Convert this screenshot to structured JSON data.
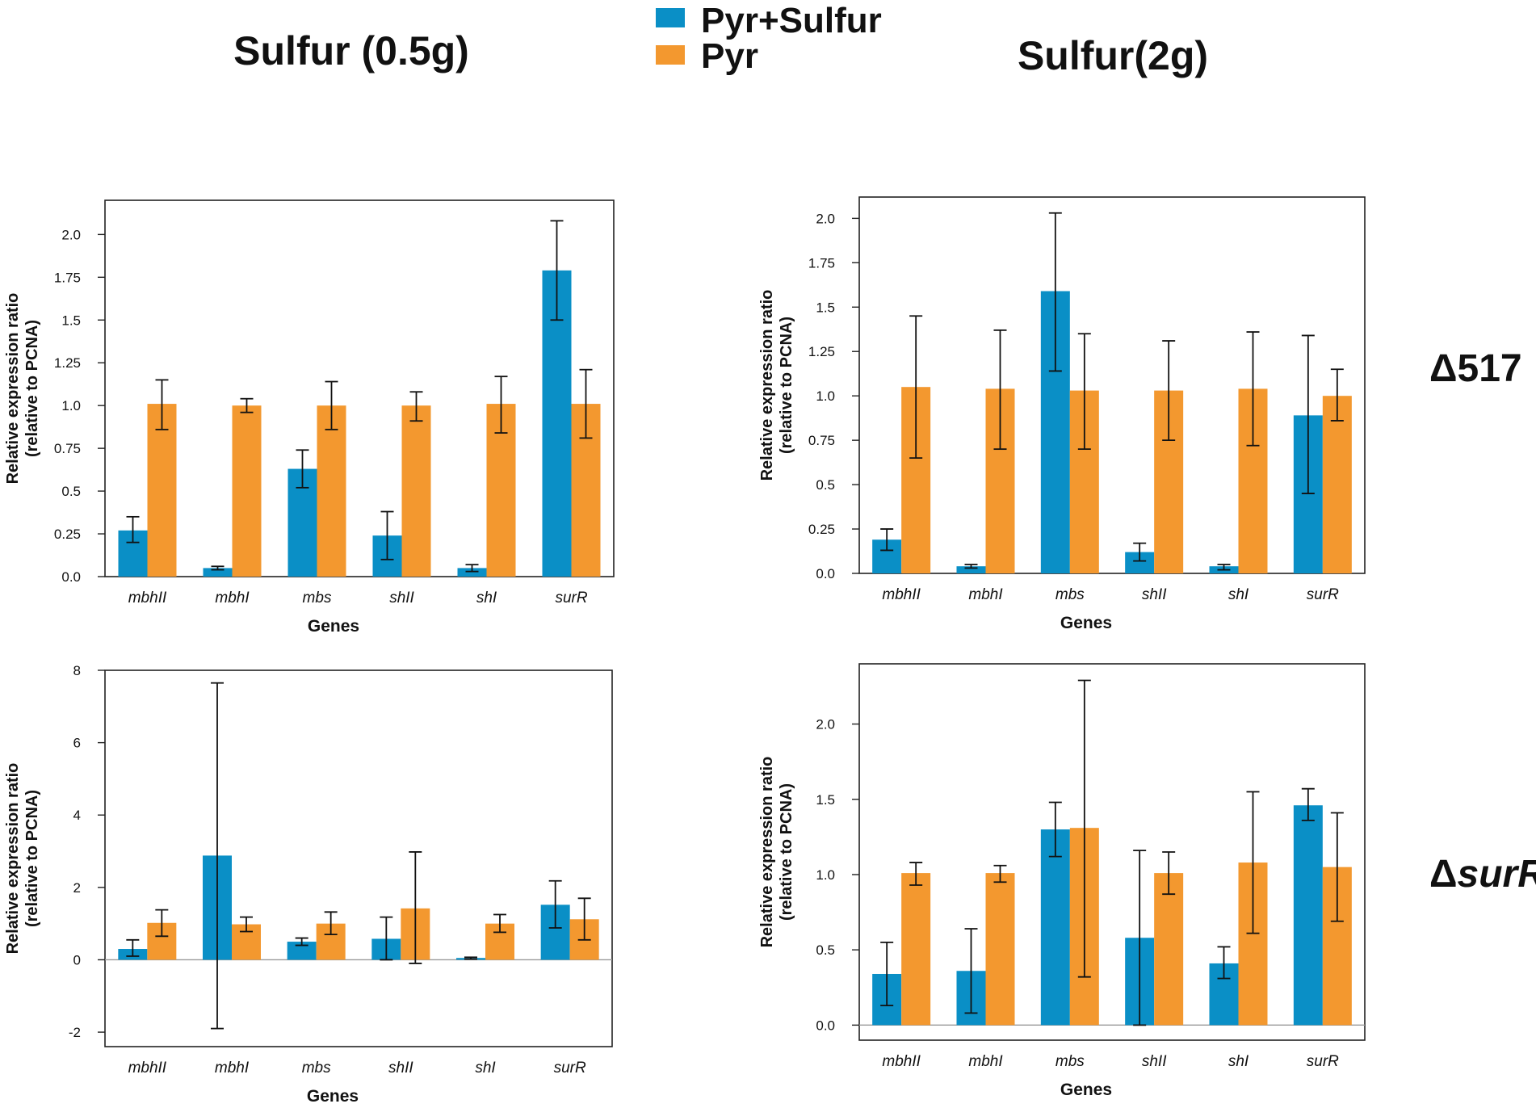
{
  "figure": {
    "headers": {
      "left": "Sulfur (0.5g)",
      "right": "Sulfur(2g)"
    },
    "row_labels": {
      "top": "Δ517",
      "bottom_prefix": "Δ",
      "bottom_italic": "surR"
    }
  },
  "legend": [
    {
      "label": "Pyr+Sulfur",
      "color": "#0a8fc6"
    },
    {
      "label": "Pyr",
      "color": "#f3982f"
    }
  ],
  "chart_data": [
    {
      "id": "delta517_sulfur_0.5g",
      "type": "bar",
      "categories": [
        "mbhII",
        "mbhI",
        "mbs",
        "shII",
        "shI",
        "surR"
      ],
      "xlabel": "Genes",
      "ylabel": [
        "Relative expression ratio",
        "(relative to PCNA)"
      ],
      "ylim": [
        0,
        2.2
      ],
      "yticks": [
        0.0,
        0.25,
        0.5,
        0.75,
        1.0,
        1.25,
        1.5,
        1.75,
        2.0
      ],
      "ytick_labels": [
        "0.0",
        "0.25",
        "0.5",
        "0.75",
        "1.0",
        "1.25",
        "1.5",
        "1.75",
        "2.0"
      ],
      "zero_line": false,
      "series": [
        {
          "name": "Pyr+Sulfur",
          "values": [
            0.27,
            0.05,
            0.63,
            0.24,
            0.05,
            1.79
          ],
          "err_low": [
            0.2,
            0.04,
            0.52,
            0.1,
            0.03,
            1.5
          ],
          "err_high": [
            0.35,
            0.06,
            0.74,
            0.38,
            0.07,
            2.08
          ]
        },
        {
          "name": "Pyr",
          "values": [
            1.01,
            1.0,
            1.0,
            1.0,
            1.01,
            1.01
          ],
          "err_low": [
            0.86,
            0.96,
            0.86,
            0.91,
            0.84,
            0.81
          ],
          "err_high": [
            1.15,
            1.04,
            1.14,
            1.08,
            1.17,
            1.21
          ]
        }
      ]
    },
    {
      "id": "delta517_sulfur_2g",
      "type": "bar",
      "categories": [
        "mbhII",
        "mbhI",
        "mbs",
        "shII",
        "shI",
        "surR"
      ],
      "xlabel": "Genes",
      "ylabel": [
        "Relative expression ratio",
        "(relative to PCNA)"
      ],
      "ylim": [
        0,
        2.12
      ],
      "yticks": [
        0.0,
        0.25,
        0.5,
        0.75,
        1.0,
        1.25,
        1.5,
        1.75,
        2.0
      ],
      "ytick_labels": [
        "0.0",
        "0.25",
        "0.5",
        "0.75",
        "1.0",
        "1.25",
        "1.5",
        "1.75",
        "2.0"
      ],
      "zero_line": false,
      "series": [
        {
          "name": "Pyr+Sulfur",
          "values": [
            0.19,
            0.04,
            1.59,
            0.12,
            0.04,
            0.89
          ],
          "err_low": [
            0.13,
            0.03,
            1.14,
            0.07,
            0.02,
            0.45
          ],
          "err_high": [
            0.25,
            0.05,
            2.03,
            0.17,
            0.05,
            1.34
          ]
        },
        {
          "name": "Pyr",
          "values": [
            1.05,
            1.04,
            1.03,
            1.03,
            1.04,
            1.0
          ],
          "err_low": [
            0.65,
            0.7,
            0.7,
            0.75,
            0.72,
            0.86
          ],
          "err_high": [
            1.45,
            1.37,
            1.35,
            1.31,
            1.36,
            1.15
          ]
        }
      ]
    },
    {
      "id": "deltasurR_sulfur_0.5g",
      "type": "bar",
      "categories": [
        "mbhII",
        "mbhI",
        "mbs",
        "shII",
        "shI",
        "surR"
      ],
      "xlabel": "Genes",
      "ylabel": [
        "Relative expression ratio",
        "(relative to PCNA)"
      ],
      "ylim": [
        -2.4,
        8.0
      ],
      "yticks": [
        -2,
        0,
        2,
        4,
        6,
        8
      ],
      "ytick_labels": [
        "-2",
        "0",
        "2",
        "4",
        "6",
        "8"
      ],
      "zero_line": true,
      "series": [
        {
          "name": "Pyr+Sulfur",
          "values": [
            0.3,
            2.88,
            0.5,
            0.58,
            0.05,
            1.52
          ],
          "err_low": [
            0.1,
            -1.9,
            0.4,
            0.0,
            0.02,
            0.88
          ],
          "err_high": [
            0.55,
            7.65,
            0.6,
            1.18,
            0.07,
            2.18
          ]
        },
        {
          "name": "Pyr",
          "values": [
            1.02,
            0.98,
            1.0,
            1.42,
            1.0,
            1.12
          ],
          "err_low": [
            0.65,
            0.78,
            0.7,
            -0.1,
            0.76,
            0.55
          ],
          "err_high": [
            1.38,
            1.18,
            1.32,
            2.98,
            1.25,
            1.7
          ]
        }
      ]
    },
    {
      "id": "deltasurR_sulfur_2g",
      "type": "bar",
      "categories": [
        "mbhII",
        "mbhI",
        "mbs",
        "shII",
        "shI",
        "surR"
      ],
      "xlabel": "Genes",
      "ylabel": [
        "Relative expression ratio",
        "(relative to PCNA)"
      ],
      "ylim": [
        -0.1,
        2.4
      ],
      "yticks": [
        0.0,
        0.5,
        1.0,
        1.5,
        2.0
      ],
      "ytick_labels": [
        "0.0",
        "0.5",
        "1.0",
        "1.5",
        "2.0"
      ],
      "zero_line": true,
      "series": [
        {
          "name": "Pyr+Sulfur",
          "values": [
            0.34,
            0.36,
            1.3,
            0.58,
            0.41,
            1.46
          ],
          "err_low": [
            0.13,
            0.08,
            1.12,
            0.0,
            0.31,
            1.36
          ],
          "err_high": [
            0.55,
            0.64,
            1.48,
            1.16,
            0.52,
            1.57
          ]
        },
        {
          "name": "Pyr",
          "values": [
            1.01,
            1.01,
            1.31,
            1.01,
            1.08,
            1.05
          ],
          "err_low": [
            0.93,
            0.95,
            0.32,
            0.87,
            0.61,
            0.69
          ],
          "err_high": [
            1.08,
            1.06,
            2.29,
            1.15,
            1.55,
            1.41
          ]
        }
      ]
    }
  ]
}
